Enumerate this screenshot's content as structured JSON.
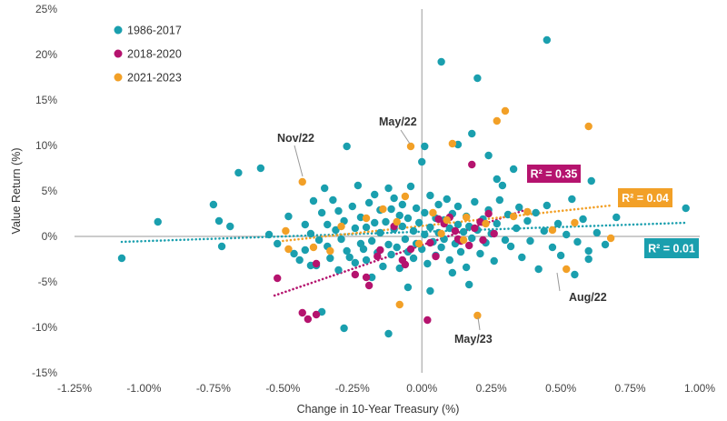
{
  "chart_data": {
    "type": "scatter",
    "xlabel": "Change in 10-Year Treasury (%)",
    "ylabel": "Value Return (%)",
    "xlim": [
      -1.25,
      1.0
    ],
    "ylim": [
      -15,
      25
    ],
    "x_ticks": [
      -1.25,
      -1.0,
      -0.75,
      -0.5,
      -0.25,
      0.0,
      0.25,
      0.5,
      0.75,
      1.0
    ],
    "x_tick_labels": [
      "-1.25%",
      "-1.00%",
      "-0.75%",
      "-0.50%",
      "-0.25%",
      "0.00%",
      "0.25%",
      "0.50%",
      "0.75%",
      "1.00%"
    ],
    "y_ticks": [
      -15,
      -10,
      -5,
      0,
      5,
      10,
      15,
      20,
      25
    ],
    "y_tick_labels": [
      "-15%",
      "-10%",
      "-5%",
      "0%",
      "5%",
      "10%",
      "15%",
      "20%",
      "25%"
    ],
    "grid": false,
    "legend_position": "top-left",
    "series": [
      {
        "name": "1986-2017",
        "color": "#1a9fae",
        "trendline": {
          "x": [
            -1.08,
            0.95
          ],
          "y": [
            -0.6,
            1.5
          ],
          "r2_label": "R² = 0.01"
        },
        "points": [
          [
            -1.08,
            -2.4
          ],
          [
            -0.95,
            1.6
          ],
          [
            -0.75,
            3.5
          ],
          [
            -0.73,
            1.7
          ],
          [
            -0.72,
            -1.1
          ],
          [
            -0.69,
            1.1
          ],
          [
            -0.66,
            7.0
          ],
          [
            -0.58,
            7.5
          ],
          [
            -0.55,
            0.2
          ],
          [
            -0.52,
            -0.8
          ],
          [
            -0.48,
            2.2
          ],
          [
            -0.46,
            -1.9
          ],
          [
            -0.44,
            -2.6
          ],
          [
            -0.42,
            -1.5
          ],
          [
            -0.42,
            1.3
          ],
          [
            -0.4,
            0.3
          ],
          [
            -0.39,
            3.9
          ],
          [
            -0.38,
            -3.2
          ],
          [
            -0.37,
            -0.4
          ],
          [
            -0.36,
            2.6
          ],
          [
            -0.35,
            5.3
          ],
          [
            -0.34,
            1.3
          ],
          [
            -0.34,
            -1.1
          ],
          [
            -0.33,
            -2.4
          ],
          [
            -0.32,
            4.0
          ],
          [
            -0.31,
            0.7
          ],
          [
            -0.3,
            -3.7
          ],
          [
            -0.3,
            2.8
          ],
          [
            -0.29,
            -0.3
          ],
          [
            -0.28,
            1.7
          ],
          [
            -0.27,
            -1.6
          ],
          [
            -0.26,
            -2.3
          ],
          [
            -0.25,
            3.3
          ],
          [
            -0.24,
            0.9
          ],
          [
            -0.24,
            -2.9
          ],
          [
            -0.23,
            5.6
          ],
          [
            -0.22,
            -0.8
          ],
          [
            -0.22,
            2.1
          ],
          [
            -0.21,
            -1.4
          ],
          [
            -0.2,
            1.0
          ],
          [
            -0.2,
            -2.6
          ],
          [
            -0.19,
            3.7
          ],
          [
            -0.18,
            -0.5
          ],
          [
            -0.17,
            4.6
          ],
          [
            -0.17,
            1.5
          ],
          [
            -0.16,
            -1.8
          ],
          [
            -0.15,
            0.4
          ],
          [
            -0.15,
            2.9
          ],
          [
            -0.14,
            -3.3
          ],
          [
            -0.13,
            1.6
          ],
          [
            -0.12,
            5.3
          ],
          [
            -0.12,
            -0.9
          ],
          [
            -0.11,
            3.0
          ],
          [
            -0.11,
            -2.0
          ],
          [
            -0.1,
            0.8
          ],
          [
            -0.1,
            4.2
          ],
          [
            -0.09,
            -1.2
          ],
          [
            -0.08,
            2.3
          ],
          [
            -0.08,
            -3.5
          ],
          [
            -0.07,
            1.1
          ],
          [
            -0.07,
            3.5
          ],
          [
            -0.06,
            -0.3
          ],
          [
            -0.05,
            2.0
          ],
          [
            -0.05,
            -1.7
          ],
          [
            -0.04,
            5.5
          ],
          [
            -0.03,
            0.6
          ],
          [
            -0.03,
            -2.4
          ],
          [
            -0.02,
            3.1
          ],
          [
            -0.02,
            -0.8
          ],
          [
            -0.01,
            1.5
          ],
          [
            0.0,
            -1.4
          ],
          [
            0.01,
            2.6
          ],
          [
            0.01,
            0.2
          ],
          [
            0.02,
            -3.0
          ],
          [
            0.03,
            4.5
          ],
          [
            0.03,
            1.0
          ],
          [
            0.04,
            -0.6
          ],
          [
            0.05,
            2.0
          ],
          [
            0.05,
            -2.1
          ],
          [
            0.06,
            3.5
          ],
          [
            0.06,
            0.4
          ],
          [
            0.07,
            -1.2
          ],
          [
            0.08,
            1.8
          ],
          [
            0.08,
            -0.3
          ],
          [
            0.09,
            4.1
          ],
          [
            0.1,
            0.9
          ],
          [
            0.1,
            -2.6
          ],
          [
            0.11,
            2.5
          ],
          [
            0.12,
            -0.8
          ],
          [
            0.13,
            1.3
          ],
          [
            0.13,
            3.3
          ],
          [
            0.14,
            -1.7
          ],
          [
            0.15,
            0.5
          ],
          [
            0.16,
            2.2
          ],
          [
            0.16,
            -3.4
          ],
          [
            0.17,
            1.1
          ],
          [
            0.18,
            -0.2
          ],
          [
            0.19,
            3.8
          ],
          [
            0.2,
            0.7
          ],
          [
            0.21,
            -1.9
          ],
          [
            0.22,
            1.9
          ],
          [
            0.23,
            -0.7
          ],
          [
            0.24,
            2.9
          ],
          [
            0.25,
            0.3
          ],
          [
            0.26,
            -2.7
          ],
          [
            0.27,
            1.4
          ],
          [
            0.28,
            4.0
          ],
          [
            0.3,
            -0.4
          ],
          [
            0.31,
            2.4
          ],
          [
            0.32,
            -1.1
          ],
          [
            0.34,
            0.9
          ],
          [
            0.35,
            3.2
          ],
          [
            0.36,
            -2.3
          ],
          [
            0.38,
            1.7
          ],
          [
            0.39,
            -0.5
          ],
          [
            0.41,
            2.6
          ],
          [
            0.42,
            -3.6
          ],
          [
            0.44,
            0.6
          ],
          [
            0.45,
            3.4
          ],
          [
            0.47,
            -1.2
          ],
          [
            0.49,
            1.4
          ],
          [
            0.5,
            -2.1
          ],
          [
            0.52,
            0.2
          ],
          [
            0.54,
            4.1
          ],
          [
            0.56,
            -0.6
          ],
          [
            0.58,
            1.9
          ],
          [
            0.6,
            -1.6
          ],
          [
            0.61,
            6.1
          ],
          [
            0.63,
            0.4
          ],
          [
            0.66,
            -0.9
          ],
          [
            0.7,
            2.1
          ],
          [
            0.95,
            3.1
          ],
          [
            0.45,
            21.6
          ],
          [
            0.07,
            19.2
          ],
          [
            0.2,
            17.4
          ],
          [
            0.13,
            10.1
          ],
          [
            0.18,
            11.3
          ],
          [
            -0.27,
            9.9
          ],
          [
            0.01,
            9.9
          ],
          [
            0.24,
            8.9
          ],
          [
            0.29,
            5.6
          ],
          [
            0.33,
            7.4
          ],
          [
            0.27,
            6.3
          ],
          [
            0.0,
            8.2
          ],
          [
            -0.12,
            -10.7
          ],
          [
            -0.36,
            -8.3
          ],
          [
            -0.28,
            -10.1
          ],
          [
            0.17,
            -5.3
          ],
          [
            0.03,
            -6.0
          ],
          [
            -0.05,
            -5.6
          ],
          [
            -0.18,
            -4.5
          ],
          [
            -0.4,
            -3.2
          ],
          [
            0.11,
            -4.0
          ],
          [
            0.55,
            -4.2
          ],
          [
            0.6,
            -2.5
          ]
        ]
      },
      {
        "name": "2018-2020",
        "color": "#b5136e",
        "trendline": {
          "x": [
            -0.53,
            0.38
          ],
          "y": [
            -6.5,
            3.0
          ],
          "r2_label": "R² = 0.35"
        },
        "points": [
          [
            -0.52,
            -4.6
          ],
          [
            -0.43,
            -8.4
          ],
          [
            -0.41,
            -9.1
          ],
          [
            -0.38,
            -8.6
          ],
          [
            -0.38,
            -3.0
          ],
          [
            -0.24,
            -4.2
          ],
          [
            -0.2,
            -4.5
          ],
          [
            -0.19,
            -5.4
          ],
          [
            -0.15,
            -1.5
          ],
          [
            -0.1,
            1.1
          ],
          [
            -0.07,
            -2.6
          ],
          [
            -0.06,
            -3.1
          ],
          [
            -0.04,
            -1.4
          ],
          [
            0.02,
            -9.2
          ],
          [
            0.03,
            -0.7
          ],
          [
            0.06,
            1.9
          ],
          [
            0.1,
            2.1
          ],
          [
            0.12,
            0.6
          ],
          [
            0.14,
            -0.5
          ],
          [
            0.17,
            -1.0
          ],
          [
            0.19,
            0.9
          ],
          [
            0.21,
            1.6
          ],
          [
            0.22,
            -0.4
          ],
          [
            0.26,
            0.3
          ],
          [
            0.13,
            -0.3
          ],
          [
            0.08,
            1.4
          ],
          [
            0.18,
            7.9
          ],
          [
            0.24,
            2.5
          ],
          [
            -0.16,
            -2.2
          ],
          [
            0.05,
            -2.2
          ]
        ]
      },
      {
        "name": "2021-2023",
        "color": "#f2a027",
        "trendline": {
          "x": [
            -0.5,
            0.68
          ],
          "y": [
            -0.5,
            3.4
          ],
          "r2_label": "R² = 0.04"
        },
        "points": [
          [
            -0.49,
            0.6
          ],
          [
            -0.48,
            -1.4
          ],
          [
            -0.39,
            -1.2
          ],
          [
            -0.33,
            -1.6
          ],
          [
            -0.29,
            1.1
          ],
          [
            -0.2,
            2.0
          ],
          [
            -0.14,
            3.0
          ],
          [
            -0.09,
            1.6
          ],
          [
            -0.08,
            -7.5
          ],
          [
            -0.06,
            4.4
          ],
          [
            -0.01,
            -0.8
          ],
          [
            0.04,
            2.6
          ],
          [
            0.09,
            1.8
          ],
          [
            0.11,
            10.2
          ],
          [
            0.16,
            2.1
          ],
          [
            0.2,
            -8.7
          ],
          [
            0.23,
            1.4
          ],
          [
            0.27,
            12.7
          ],
          [
            0.3,
            13.8
          ],
          [
            0.33,
            2.2
          ],
          [
            0.38,
            2.7
          ],
          [
            0.47,
            0.7
          ],
          [
            0.52,
            -3.6
          ],
          [
            0.55,
            1.5
          ],
          [
            0.6,
            12.1
          ],
          [
            0.68,
            -0.2
          ],
          [
            -0.04,
            9.9
          ],
          [
            -0.43,
            6.0
          ],
          [
            0.15,
            -0.4
          ],
          [
            0.07,
            0.3
          ]
        ]
      }
    ],
    "annotations": [
      "Nov/22",
      "May/22",
      "Aug/22",
      "May/23"
    ]
  }
}
